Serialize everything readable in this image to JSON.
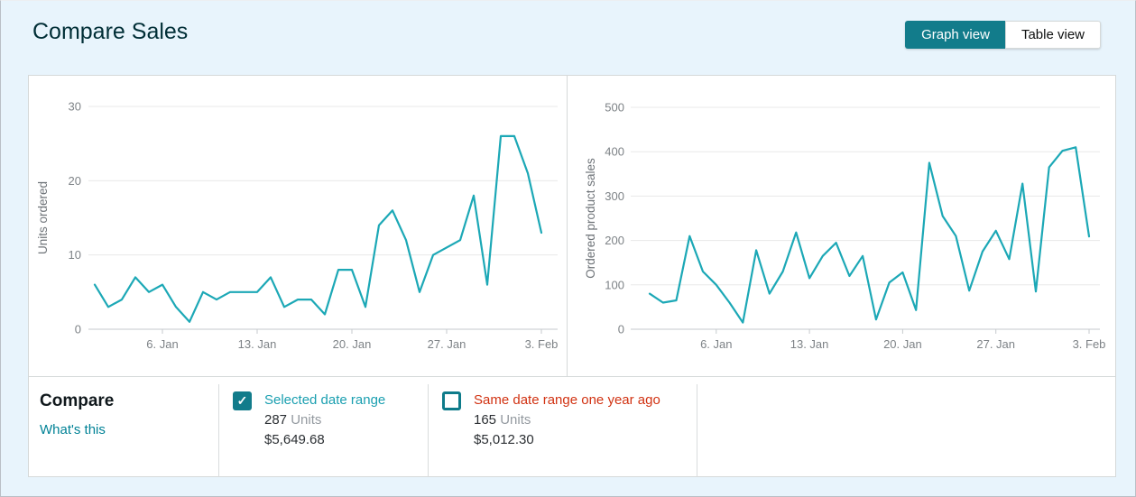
{
  "header": {
    "title": "Compare Sales",
    "view_toggle": {
      "graph": "Graph view",
      "table": "Table view"
    }
  },
  "icons": {
    "check": "✓"
  },
  "colors": {
    "accent_teal": "#127c8b",
    "line_teal": "#1ca8b6",
    "link_teal": "#008296",
    "label_teal": "#1a9fb0",
    "label_red": "#d13212",
    "page_bg": "#e8f4fc"
  },
  "chart_data": [
    {
      "type": "line",
      "ylabel": "Units ordered",
      "ylim": [
        0,
        30
      ],
      "yticks": [
        0,
        10,
        20,
        30
      ],
      "grid": true,
      "legend": "none",
      "x_tick_labels": [
        "6. Jan",
        "13. Jan",
        "20. Jan",
        "27. Jan",
        "3. Feb"
      ],
      "x_tick_indices": [
        5,
        12,
        19,
        26,
        33
      ],
      "values": [
        6,
        3,
        4,
        7,
        5,
        6,
        3,
        1,
        5,
        4,
        5,
        5,
        5,
        7,
        3,
        4,
        4,
        2,
        8,
        8,
        3,
        14,
        16,
        12,
        5,
        10,
        11,
        12,
        18,
        6,
        26,
        26,
        21,
        13
      ],
      "line_color": "#1ca8b6"
    },
    {
      "type": "line",
      "ylabel": "Ordered product sales",
      "ylim": [
        0,
        500
      ],
      "yticks": [
        0,
        100,
        200,
        300,
        400,
        500
      ],
      "grid": true,
      "legend": "none",
      "x_tick_labels": [
        "6. Jan",
        "13. Jan",
        "20. Jan",
        "27. Jan",
        "3. Feb"
      ],
      "x_tick_indices": [
        5,
        12,
        19,
        26,
        33
      ],
      "values": [
        80,
        60,
        65,
        210,
        130,
        100,
        60,
        15,
        178,
        80,
        130,
        218,
        115,
        165,
        195,
        120,
        165,
        22,
        105,
        128,
        43,
        375,
        255,
        210,
        87,
        175,
        222,
        158,
        328,
        85,
        365,
        402,
        410,
        209
      ],
      "line_color": "#1ca8b6"
    }
  ],
  "compare": {
    "heading": "Compare",
    "whats_this": "What's this",
    "items": [
      {
        "label": "Selected date range",
        "units": "287",
        "units_word": "Units",
        "amount": "$5,649.68",
        "checked": true
      },
      {
        "label": "Same date range one year ago",
        "units": "165",
        "units_word": "Units",
        "amount": "$5,012.30",
        "checked": false
      }
    ]
  }
}
